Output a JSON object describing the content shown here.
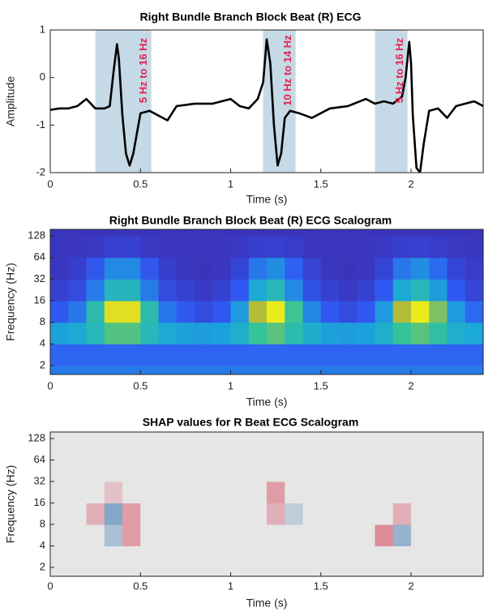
{
  "chart_data": [
    {
      "type": "line",
      "title": "Right Bundle Branch Block Beat (R) ECG",
      "x_label": "Time (s)",
      "y_label": "Amplitude",
      "xlim": [
        0,
        2.4
      ],
      "xticks": [
        0,
        0.5,
        1,
        1.5,
        2
      ],
      "ylim": [
        -2,
        1
      ],
      "yticks": [
        -2,
        -1,
        0,
        1
      ],
      "color": "#000000",
      "x": [
        0,
        0.05,
        0.1,
        0.15,
        0.2,
        0.25,
        0.3,
        0.33,
        0.35,
        0.37,
        0.38,
        0.4,
        0.42,
        0.44,
        0.46,
        0.5,
        0.55,
        0.6,
        0.65,
        0.7,
        0.8,
        0.9,
        1.0,
        1.05,
        1.1,
        1.15,
        1.18,
        1.2,
        1.22,
        1.24,
        1.26,
        1.28,
        1.3,
        1.33,
        1.38,
        1.45,
        1.55,
        1.65,
        1.75,
        1.8,
        1.85,
        1.9,
        1.95,
        1.97,
        1.99,
        2.0,
        2.01,
        2.03,
        2.05,
        2.07,
        2.1,
        2.15,
        2.2,
        2.25,
        2.3,
        2.35,
        2.4
      ],
      "values": [
        -0.68,
        -0.65,
        -0.65,
        -0.6,
        -0.45,
        -0.65,
        -0.65,
        -0.6,
        0.1,
        0.7,
        0.4,
        -0.8,
        -1.6,
        -1.85,
        -1.6,
        -0.75,
        -0.7,
        -0.8,
        -0.9,
        -0.6,
        -0.55,
        -0.55,
        -0.45,
        -0.6,
        -0.65,
        -0.45,
        -0.1,
        0.8,
        0.3,
        -1.0,
        -1.85,
        -1.6,
        -0.85,
        -0.7,
        -0.75,
        -0.85,
        -0.65,
        -0.6,
        -0.45,
        -0.55,
        -0.5,
        -0.55,
        -0.4,
        0.0,
        0.75,
        0.3,
        -0.8,
        -1.9,
        -2.0,
        -1.4,
        -0.7,
        -0.65,
        -0.85,
        -0.6,
        -0.55,
        -0.5,
        -0.6
      ],
      "bands": [
        {
          "x0": 0.25,
          "x1": 0.56,
          "label": "5 Hz to 16 Hz"
        },
        {
          "x0": 1.18,
          "x1": 1.36,
          "label": "10 Hz to 14 Hz"
        },
        {
          "x0": 1.8,
          "x1": 1.98,
          "label": "5 Hz to 16 Hz"
        }
      ],
      "band_color": "#c5d9e6"
    },
    {
      "type": "heatmap",
      "title": "Right Bundle Branch Block Beat (R) ECG Scalogram",
      "x_label": "Time (s)",
      "y_label": "Frequency (Hz)",
      "xlim": [
        0,
        2.4
      ],
      "xticks": [
        0,
        0.5,
        1,
        1.5,
        2
      ],
      "ylim": [
        1.5,
        158
      ],
      "yticks": [
        2,
        4,
        8,
        16,
        32,
        64,
        128
      ],
      "log_y": true,
      "clim": [
        0,
        1
      ],
      "colormap": [
        "#3e26a8",
        "#2f5cf5",
        "#1ba9d8",
        "#36c597",
        "#c2bc30",
        "#f9fb15"
      ],
      "x_bins": [
        0,
        0.1,
        0.2,
        0.3,
        0.4,
        0.5,
        0.6,
        0.7,
        0.8,
        0.9,
        1.0,
        1.1,
        1.2,
        1.3,
        1.4,
        1.5,
        1.6,
        1.7,
        1.8,
        1.9,
        2.0,
        2.1,
        2.2,
        2.3,
        2.4
      ],
      "y_bins": [
        1.5,
        2,
        4,
        8,
        16,
        32,
        64,
        128,
        158
      ],
      "values": [
        [
          0.28,
          0.28,
          0.28,
          0.28,
          0.28,
          0.28,
          0.28,
          0.28,
          0.28,
          0.28,
          0.28,
          0.28,
          0.28,
          0.28,
          0.28,
          0.28,
          0.28,
          0.28,
          0.28,
          0.28,
          0.28,
          0.28,
          0.28,
          0.28
        ],
        [
          0.22,
          0.22,
          0.22,
          0.22,
          0.22,
          0.22,
          0.22,
          0.22,
          0.22,
          0.22,
          0.22,
          0.22,
          0.22,
          0.22,
          0.22,
          0.22,
          0.22,
          0.22,
          0.22,
          0.22,
          0.22,
          0.22,
          0.22,
          0.22
        ],
        [
          0.38,
          0.41,
          0.5,
          0.64,
          0.64,
          0.5,
          0.41,
          0.38,
          0.37,
          0.38,
          0.44,
          0.59,
          0.65,
          0.53,
          0.43,
          0.38,
          0.37,
          0.38,
          0.44,
          0.59,
          0.65,
          0.56,
          0.44,
          0.4
        ],
        [
          0.19,
          0.27,
          0.53,
          0.91,
          0.91,
          0.53,
          0.27,
          0.19,
          0.14,
          0.19,
          0.36,
          0.78,
          0.95,
          0.61,
          0.31,
          0.19,
          0.14,
          0.19,
          0.36,
          0.78,
          0.95,
          0.7,
          0.36,
          0.23
        ],
        [
          0.1,
          0.14,
          0.28,
          0.48,
          0.48,
          0.28,
          0.14,
          0.1,
          0.07,
          0.1,
          0.19,
          0.41,
          0.5,
          0.32,
          0.16,
          0.1,
          0.07,
          0.1,
          0.19,
          0.41,
          0.5,
          0.37,
          0.19,
          0.12
        ],
        [
          0.06,
          0.09,
          0.18,
          0.32,
          0.32,
          0.18,
          0.09,
          0.06,
          0.05,
          0.06,
          0.12,
          0.27,
          0.33,
          0.21,
          0.11,
          0.06,
          0.05,
          0.06,
          0.12,
          0.27,
          0.33,
          0.24,
          0.12,
          0.08
        ],
        [
          0.06,
          0.06,
          0.07,
          0.1,
          0.1,
          0.07,
          0.06,
          0.06,
          0.06,
          0.06,
          0.07,
          0.09,
          0.1,
          0.08,
          0.06,
          0.06,
          0.06,
          0.06,
          0.07,
          0.09,
          0.1,
          0.08,
          0.07,
          0.06
        ],
        [
          0.05,
          0.05,
          0.05,
          0.05,
          0.05,
          0.05,
          0.05,
          0.05,
          0.05,
          0.05,
          0.05,
          0.05,
          0.05,
          0.05,
          0.05,
          0.05,
          0.05,
          0.05,
          0.05,
          0.05,
          0.05,
          0.05,
          0.05,
          0.05
        ]
      ]
    },
    {
      "type": "heatmap",
      "title": "SHAP values for R Beat ECG Scalogram",
      "x_label": "Time (s)",
      "y_label": "Frequency (Hz)",
      "xlim": [
        0,
        2.4
      ],
      "xticks": [
        0,
        0.5,
        1,
        1.5,
        2
      ],
      "ylim": [
        1.5,
        158
      ],
      "yticks": [
        2,
        4,
        8,
        16,
        32,
        64,
        128
      ],
      "log_y": true,
      "clim": [
        -1,
        1
      ],
      "colormap": [
        "#2166ac",
        "#e6e6e6",
        "#d6304a"
      ],
      "x_bins": [
        0,
        0.1,
        0.2,
        0.3,
        0.4,
        0.5,
        0.6,
        0.7,
        0.8,
        0.9,
        1.0,
        1.1,
        1.2,
        1.3,
        1.4,
        1.5,
        1.6,
        1.7,
        1.8,
        1.9,
        2.0,
        2.1,
        2.2,
        2.3,
        2.4
      ],
      "y_bins": [
        1.5,
        2,
        4,
        8,
        16,
        32,
        64,
        128,
        158
      ],
      "values": [
        [
          0,
          0,
          0,
          0,
          0,
          0,
          0,
          0,
          0,
          0,
          0,
          0,
          0,
          0,
          0,
          0,
          0,
          0,
          0,
          0,
          0,
          0,
          0,
          0
        ],
        [
          0,
          0,
          0,
          0,
          0,
          0,
          0,
          0,
          0,
          0,
          0,
          0,
          0,
          0,
          0,
          0,
          0,
          0,
          0,
          0,
          0,
          0,
          0,
          0
        ],
        [
          0,
          0,
          0,
          -0.3,
          0.4,
          0,
          0,
          0,
          0,
          0,
          0,
          0,
          0,
          0,
          0,
          0,
          0,
          0,
          0.5,
          -0.4,
          0,
          0,
          0,
          0
        ],
        [
          0,
          0,
          0.3,
          -0.5,
          0.4,
          0,
          0,
          0,
          0,
          0,
          0,
          0,
          0.3,
          -0.2,
          0,
          0,
          0,
          0,
          0,
          0.3,
          0,
          0,
          0,
          0
        ],
        [
          0,
          0,
          0,
          0.2,
          0,
          0,
          0,
          0,
          0,
          0,
          0,
          0,
          0.4,
          0,
          0,
          0,
          0,
          0,
          0,
          0,
          0,
          0,
          0,
          0
        ],
        [
          0,
          0,
          0,
          0,
          0,
          0,
          0,
          0,
          0,
          0,
          0,
          0,
          0,
          0,
          0,
          0,
          0,
          0,
          0,
          0,
          0,
          0,
          0,
          0
        ],
        [
          0,
          0,
          0,
          0,
          0,
          0,
          0,
          0,
          0,
          0,
          0,
          0,
          0,
          0,
          0,
          0,
          0,
          0,
          0,
          0,
          0,
          0,
          0,
          0
        ],
        [
          0,
          0,
          0,
          0,
          0,
          0,
          0,
          0,
          0,
          0,
          0,
          0,
          0,
          0,
          0,
          0,
          0,
          0,
          0,
          0,
          0,
          0,
          0,
          0
        ]
      ]
    }
  ]
}
